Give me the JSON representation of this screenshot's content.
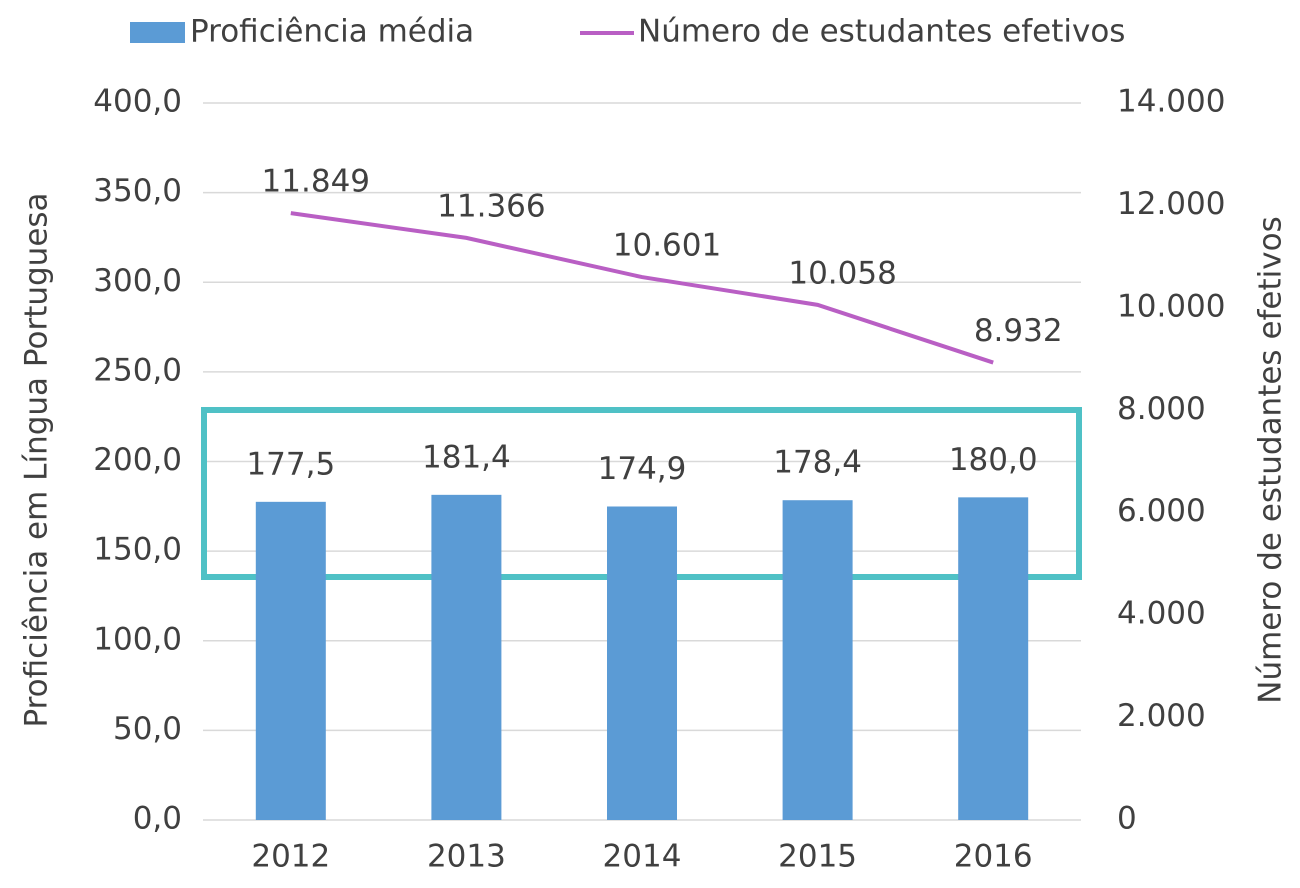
{
  "chart_data": {
    "type": "bar_line",
    "categories": [
      "2012",
      "2013",
      "2014",
      "2015",
      "2016"
    ],
    "series": [
      {
        "name": "Proficiência média",
        "type": "bar",
        "color": "#5b9bd5",
        "values": [
          177.5,
          181.4,
          174.9,
          178.4,
          180.0
        ],
        "value_labels": [
          "177,5",
          "181,4",
          "174,9",
          "178,4",
          "180,0"
        ]
      },
      {
        "name": "Número de estudantes efetivos",
        "type": "line",
        "axis": "y2",
        "color": "#b95fc4",
        "values": [
          11849,
          11366,
          10601,
          10058,
          8932
        ],
        "value_labels": [
          "11.849",
          "11.366",
          "10.601",
          "10.058",
          "8.932"
        ]
      }
    ],
    "ylabel": "Proficiência em Língua Portuguesa",
    "y2label": "Número de estudantes efetivos",
    "ylim": [
      0,
      400
    ],
    "yticks": [
      {
        "value": 0,
        "label": "0,0"
      },
      {
        "value": 50,
        "label": "50,0"
      },
      {
        "value": 100,
        "label": "100,0"
      },
      {
        "value": 150,
        "label": "150,0"
      },
      {
        "value": 200,
        "label": "200,0"
      },
      {
        "value": 250,
        "label": "250,0"
      },
      {
        "value": 300,
        "label": "300,0"
      },
      {
        "value": 350,
        "label": "350,0"
      },
      {
        "value": 400,
        "label": "400,0"
      }
    ],
    "y2lim": [
      0,
      14000
    ],
    "y2ticks": [
      0,
      {
        "value": 2000,
        "label": "2.000"
      },
      {
        "value": 4000,
        "label": "4.000"
      },
      {
        "value": 6000,
        "label": "6.000"
      },
      {
        "value": 8000,
        "label": "8.000"
      },
      {
        "value": 10000,
        "label": "10.000"
      },
      {
        "value": 12000,
        "label": "12.000"
      },
      {
        "value": 14000,
        "label": "14.000"
      }
    ],
    "grid": true,
    "legend": "top"
  }
}
